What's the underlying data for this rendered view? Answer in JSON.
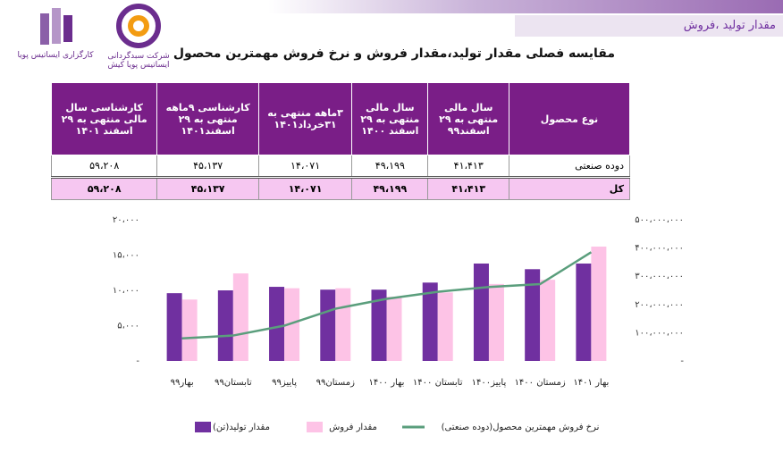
{
  "header": {
    "section": "مقدار تولید ،فروش"
  },
  "logos": {
    "broker": "کارگزاری ایساتیس پویا",
    "fund": "شرکت سبدگردانی ایساتیس پویا کیش"
  },
  "title": "مقایسه فصلی مقدار تولید،مقدار فروش و نرخ فروش مهمترین محصول",
  "table": {
    "header": [
      "نوع محصول",
      "سال مالی منتهی به ۲۹ اسفند۹۹",
      "سال مالی منتهی به ۲۹ اسفند ۱۴۰۰",
      "۳ماهه منتهی به ۳۱خرداد۱۴۰۱",
      "کارشناسی ۹ماهه منتهی به ۲۹ اسفند۱۴۰۱",
      "کارشناسی سال مالی منتهی به ۲۹ اسفند ۱۴۰۱"
    ],
    "rows": [
      [
        "دوده صنعتی",
        "۴۱،۴۱۳",
        "۴۹،۱۹۹",
        "۱۴،۰۷۱",
        "۴۵،۱۳۷",
        "۵۹،۲۰۸"
      ],
      [
        "کل",
        "۴۱،۴۱۳",
        "۴۹،۱۹۹",
        "۱۴،۰۷۱",
        "۴۵،۱۳۷",
        "۵۹،۲۰۸"
      ]
    ]
  },
  "chart_data": {
    "type": "bar",
    "grid": false,
    "categories": [
      "بهار۹۹",
      "تابستان۹۹",
      "پاییز۹۹",
      "زمستان۹۹",
      "بهار ۱۴۰۰",
      "تابستان ۱۴۰۰",
      "پاییز۱۴۰۰",
      "زمستان ۱۴۰۰",
      "بهار ۱۴۰۱"
    ],
    "series": [
      {
        "name": "مقدار تولید(تن)",
        "color": "#7030a0",
        "values": [
          9600,
          10000,
          10500,
          10100,
          10100,
          11100,
          13800,
          13000,
          13800
        ]
      },
      {
        "name": "مقدار فروش",
        "color": "#fdc3e6",
        "values": [
          8700,
          12400,
          10300,
          10300,
          9100,
          9700,
          10900,
          11500,
          16200
        ]
      },
      {
        "name": "نرخ فروش مهمترین محصول(دوده صنعتی)",
        "color": "#5a9e7c",
        "type": "line",
        "axis": "y2",
        "values": [
          80000000,
          90000000,
          125000000,
          185000000,
          220000000,
          245000000,
          262000000,
          272000000,
          385000000
        ]
      }
    ],
    "ylim": [
      0,
      20000
    ],
    "yticks": [
      {
        "value": 0,
        "label": "-"
      },
      {
        "value": 5000,
        "label": "۵،۰۰۰"
      },
      {
        "value": 10000,
        "label": "۱۰،۰۰۰"
      },
      {
        "value": 15000,
        "label": "۱۵،۰۰۰"
      },
      {
        "value": 20000,
        "label": "۲۰،۰۰۰"
      }
    ],
    "y2lim": [
      0,
      500000000
    ],
    "y2ticks": [
      {
        "value": 0,
        "label": "-"
      },
      {
        "value": 100000000,
        "label": "۱۰۰،۰۰۰،۰۰۰"
      },
      {
        "value": 200000000,
        "label": "۲۰۰،۰۰۰،۰۰۰"
      },
      {
        "value": 300000000,
        "label": "۳۰۰،۰۰۰،۰۰۰"
      },
      {
        "value": 400000000,
        "label": "۴۰۰،۰۰۰،۰۰۰"
      },
      {
        "value": 500000000,
        "label": "۵۰۰،۰۰۰،۰۰۰"
      }
    ]
  }
}
